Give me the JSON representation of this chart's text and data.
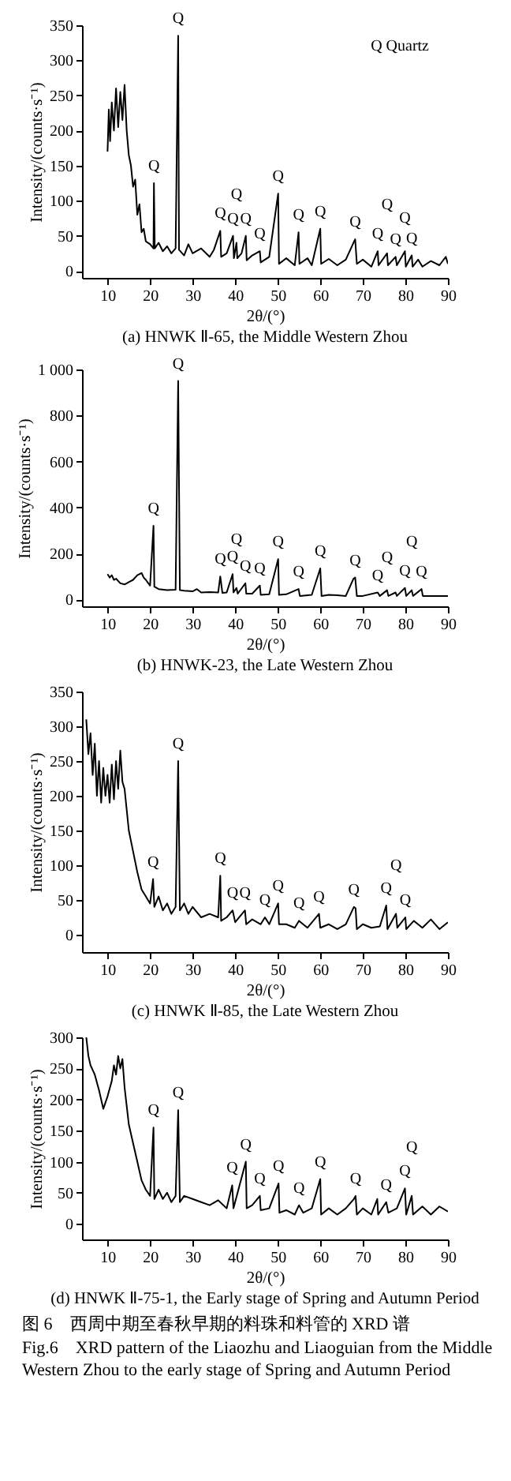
{
  "chart_data": [
    {
      "type": "line",
      "title": "(a) HNWK Ⅱ-65, the Middle Western Zhou",
      "xlabel": "2θ/(°)",
      "ylabel": "Intensity/(counts·s⁻¹)",
      "x": [
        10,
        10.3,
        10.6,
        11,
        11.5,
        12,
        12.5,
        13,
        13.5,
        14,
        14.5,
        15,
        15.5,
        16,
        16.5,
        17,
        17.5,
        18,
        18.5,
        19,
        20,
        20.8,
        20.9,
        21.1,
        22,
        23,
        24,
        25,
        26,
        26.6,
        26.8,
        28,
        29,
        30,
        32,
        34,
        35,
        36.5,
        36.7,
        38,
        39.5,
        39.7,
        40.3,
        40.5,
        41.5,
        42.5,
        42.7,
        44,
        45.8,
        46,
        48,
        50.1,
        50.3,
        52,
        54,
        54.9,
        55.1,
        57,
        58,
        60,
        60.2,
        62,
        64,
        66,
        67.8,
        68.2,
        68.6,
        70,
        72,
        73.5,
        73.7,
        75.7,
        75.9,
        77.7,
        78,
        79.9,
        80.1,
        81.5,
        81.7,
        83,
        84,
        86,
        88,
        89.5,
        90
      ],
      "series": [
        {
          "color": "#000000",
          "values": [
            170,
            230,
            185,
            240,
            200,
            260,
            205,
            255,
            215,
            265,
            200,
            165,
            150,
            120,
            130,
            80,
            95,
            55,
            60,
            42,
            38,
            32,
            125,
            32,
            40,
            28,
            35,
            25,
            32,
            335,
            30,
            22,
            38,
            25,
            32,
            20,
            30,
            57,
            20,
            25,
            50,
            18,
            40,
            18,
            25,
            50,
            15,
            22,
            28,
            12,
            20,
            110,
            10,
            18,
            8,
            55,
            10,
            18,
            8,
            60,
            10,
            17,
            8,
            16,
            40,
            45,
            10,
            16,
            6,
            28,
            8,
            25,
            8,
            20,
            8,
            28,
            6,
            22,
            6,
            16,
            6,
            14,
            8,
            20,
            10
          ]
        }
      ],
      "xlim": [
        4,
        90
      ],
      "ylim": [
        -10,
        350
      ],
      "xticks": [
        10,
        20,
        30,
        40,
        50,
        60,
        70,
        80,
        90
      ],
      "yticks": [
        0,
        50,
        100,
        150,
        200,
        250,
        300,
        350
      ],
      "annotations": [
        "Q Quartz",
        {
          "text": "Q",
          "x": 20.9,
          "y": 125
        },
        {
          "text": "Q",
          "x": 26.6,
          "y": 335
        },
        {
          "text": "Q",
          "x": 36.5,
          "y": 57
        },
        {
          "text": "Q",
          "x": 39.5,
          "y": 50
        },
        {
          "text": "Q",
          "x": 40.3,
          "y": 40
        },
        {
          "text": "Q",
          "x": 42.5,
          "y": 50
        },
        {
          "text": "Q",
          "x": 45.8,
          "y": 28
        },
        {
          "text": "Q",
          "x": 50.1,
          "y": 110
        },
        {
          "text": "Q",
          "x": 54.9,
          "y": 55
        },
        {
          "text": "Q",
          "x": 60,
          "y": 60
        },
        {
          "text": "Q",
          "x": 68.2,
          "y": 45
        },
        {
          "text": "Q",
          "x": 73.5,
          "y": 28
        },
        {
          "text": "Q",
          "x": 75.7,
          "y": 25
        },
        {
          "text": "Q",
          "x": 77.7,
          "y": 20
        },
        {
          "text": "Q",
          "x": 79.9,
          "y": 28
        },
        {
          "text": "Q",
          "x": 81.5,
          "y": 22
        }
      ]
    },
    {
      "type": "line",
      "title": "(b) HNWK-23, the Late Western Zhou",
      "xlabel": "2θ/(°)",
      "ylabel": "Intensity/(counts·s⁻¹)",
      "x": [
        10,
        10.5,
        11,
        11.5,
        12,
        13,
        14,
        15,
        16,
        17,
        18,
        18.5,
        19,
        20,
        20.8,
        21,
        22,
        24,
        26,
        26.6,
        27,
        28,
        30,
        31,
        32,
        34,
        36,
        36.5,
        37,
        38,
        39.4,
        39.6,
        40.3,
        40.6,
        42.4,
        42.6,
        44,
        45.8,
        46,
        48,
        50.1,
        50.3,
        52,
        54.9,
        55.2,
        58,
        60,
        60.3,
        62,
        64,
        66,
        67.8,
        68.2,
        68.6,
        70,
        73.5,
        74,
        75.7,
        76,
        77.7,
        78,
        79.9,
        80.2,
        81.5,
        81.8,
        83.8,
        84.1,
        86,
        88,
        90
      ],
      "series": [
        {
          "color": "#000000",
          "values": [
            110,
            95,
            105,
            85,
            90,
            70,
            65,
            75,
            85,
            105,
            115,
            95,
            85,
            60,
            320,
            55,
            45,
            40,
            42,
            950,
            40,
            38,
            35,
            45,
            30,
            32,
            30,
            100,
            28,
            30,
            110,
            30,
            50,
            25,
            70,
            25,
            25,
            60,
            20,
            22,
            175,
            20,
            22,
            45,
            15,
            20,
            135,
            15,
            20,
            18,
            15,
            90,
            95,
            15,
            15,
            30,
            15,
            40,
            15,
            30,
            15,
            50,
            15,
            40,
            15,
            45,
            15,
            15,
            15,
            15
          ]
        }
      ],
      "xlim": [
        4,
        90
      ],
      "ylim": [
        -30,
        1000
      ],
      "xticks": [
        10,
        20,
        30,
        40,
        50,
        60,
        70,
        80,
        90
      ],
      "yticks": [
        0,
        200,
        400,
        600,
        800,
        {
          "value": 1000,
          "label": "1 000"
        }
      ],
      "annotations": [
        {
          "text": "Q",
          "x": 20.8,
          "y": 320
        },
        {
          "text": "Q",
          "x": 26.6,
          "y": 950
        },
        {
          "text": "Q",
          "x": 36.5,
          "y": 100
        },
        {
          "text": "Q",
          "x": 39.4,
          "y": 110
        },
        {
          "text": "Q",
          "x": 40.3,
          "y": 50
        },
        {
          "text": "Q",
          "x": 42.4,
          "y": 70
        },
        {
          "text": "Q",
          "x": 45.8,
          "y": 60
        },
        {
          "text": "Q",
          "x": 50.1,
          "y": 175
        },
        {
          "text": "Q",
          "x": 54.9,
          "y": 45
        },
        {
          "text": "Q",
          "x": 60,
          "y": 135
        },
        {
          "text": "Q",
          "x": 68.2,
          "y": 95
        },
        {
          "text": "Q",
          "x": 73.5,
          "y": 30
        },
        {
          "text": "Q",
          "x": 75.7,
          "y": 40
        },
        {
          "text": "Q",
          "x": 79.9,
          "y": 50
        },
        {
          "text": "Q",
          "x": 81.5,
          "y": 40
        },
        {
          "text": "Q",
          "x": 83.8,
          "y": 45
        }
      ]
    },
    {
      "type": "line",
      "title": "(c) HNWK Ⅱ-85, the Late Western Zhou",
      "xlabel": "2θ/(°)",
      "ylabel": "Intensity/(counts·s⁻¹)",
      "x": [
        5,
        5.5,
        6,
        6.5,
        7,
        7.5,
        8,
        8.5,
        9,
        9.5,
        10,
        10.5,
        11,
        11.5,
        12,
        12.5,
        13,
        13.5,
        14,
        15,
        16,
        17,
        18,
        19,
        20,
        20.7,
        21,
        22,
        23,
        24,
        25,
        26,
        26.6,
        27,
        28,
        29,
        30,
        32,
        34,
        36,
        36.5,
        36.7,
        38,
        39.4,
        40,
        42.3,
        42.6,
        44,
        46,
        47,
        48,
        50.1,
        50.3,
        52,
        54,
        55,
        57,
        59.7,
        60,
        62,
        64,
        66,
        67.9,
        68.3,
        68.6,
        70,
        72,
        74,
        75.5,
        75.8,
        77.8,
        78.1,
        80,
        80.2,
        82,
        84,
        86,
        88,
        90
      ],
      "series": [
        {
          "color": "#000000",
          "values": [
            310,
            260,
            290,
            230,
            275,
            200,
            250,
            190,
            240,
            200,
            230,
            190,
            245,
            195,
            250,
            210,
            265,
            220,
            210,
            150,
            120,
            90,
            65,
            55,
            45,
            80,
            40,
            55,
            35,
            45,
            30,
            40,
            250,
            35,
            45,
            30,
            40,
            25,
            30,
            25,
            85,
            20,
            25,
            35,
            18,
            35,
            15,
            22,
            15,
            25,
            15,
            45,
            15,
            15,
            10,
            20,
            10,
            30,
            10,
            15,
            8,
            15,
            40,
            38,
            8,
            15,
            10,
            12,
            42,
            8,
            30,
            10,
            25,
            8,
            20,
            10,
            22,
            8,
            18
          ]
        }
      ],
      "xlim": [
        4,
        90
      ],
      "ylim": [
        -25,
        350
      ],
      "xticks": [
        10,
        20,
        30,
        40,
        50,
        60,
        70,
        80,
        90
      ],
      "yticks": [
        0,
        50,
        100,
        150,
        200,
        250,
        300,
        350
      ],
      "annotations": [
        {
          "text": "Q",
          "x": 20.7,
          "y": 80
        },
        {
          "text": "Q",
          "x": 26.6,
          "y": 250
        },
        {
          "text": "Q",
          "x": 36.5,
          "y": 85
        },
        {
          "text": "Q",
          "x": 39.4,
          "y": 35
        },
        {
          "text": "Q",
          "x": 42.3,
          "y": 35
        },
        {
          "text": "Q",
          "x": 47,
          "y": 25
        },
        {
          "text": "Q",
          "x": 50.1,
          "y": 45
        },
        {
          "text": "Q",
          "x": 55,
          "y": 20
        },
        {
          "text": "Q",
          "x": 59.7,
          "y": 30
        },
        {
          "text": "Q",
          "x": 67.9,
          "y": 40
        },
        {
          "text": "Q",
          "x": 75.5,
          "y": 42
        },
        {
          "text": "Q",
          "x": 77.8,
          "y": 30
        },
        {
          "text": "Q",
          "x": 80,
          "y": 25
        }
      ]
    },
    {
      "type": "line",
      "title": "(d) HNWK Ⅱ-75-1, the Early stage of Spring and Autumn Period",
      "xlabel": "2θ/(°)",
      "ylabel": "Intensity/(counts·s⁻¹)",
      "x": [
        5,
        5.5,
        6,
        7,
        8,
        9,
        10,
        11,
        11.5,
        12,
        12.5,
        13,
        13.5,
        14,
        15,
        16,
        17,
        18,
        19,
        20,
        20.8,
        21,
        22,
        23,
        24,
        25,
        26,
        26.6,
        27,
        28,
        30,
        32,
        34,
        36,
        38,
        39.3,
        39.6,
        42.5,
        42.7,
        44,
        45.8,
        46,
        48,
        50.2,
        50.4,
        52,
        54,
        55,
        56,
        58,
        60,
        60.2,
        62,
        64,
        66,
        67.9,
        68.3,
        68.6,
        70,
        72,
        73.4,
        73.6,
        75.5,
        76,
        78,
        79.9,
        80.2,
        81.5,
        81.8,
        84,
        86,
        88,
        90
      ],
      "series": [
        {
          "color": "#000000",
          "values": [
            300,
            270,
            255,
            240,
            215,
            185,
            205,
            230,
            255,
            240,
            270,
            250,
            265,
            220,
            160,
            130,
            100,
            70,
            55,
            45,
            155,
            40,
            55,
            40,
            50,
            35,
            45,
            183,
            35,
            45,
            40,
            35,
            30,
            38,
            25,
            62,
            25,
            100,
            25,
            30,
            45,
            22,
            25,
            65,
            18,
            22,
            15,
            30,
            18,
            25,
            72,
            15,
            25,
            15,
            25,
            40,
            45,
            15,
            25,
            15,
            40,
            15,
            35,
            18,
            25,
            57,
            15,
            45,
            15,
            28,
            15,
            28,
            20
          ]
        }
      ],
      "xlim": [
        4,
        90
      ],
      "ylim": [
        -25,
        300
      ],
      "xticks": [
        10,
        20,
        30,
        40,
        50,
        60,
        70,
        80,
        90
      ],
      "yticks": [
        0,
        50,
        100,
        150,
        200,
        250,
        300
      ],
      "annotations": [
        "图 6　西周中期至春秋早期的料珠和料管的 XRD 谱",
        "Fig.6　XRD pattern of the Liaozhu and Liaoguian from the Middle Western Zhou to the early stage of Spring and Autumn Period",
        {
          "text": "Q",
          "x": 20.8,
          "y": 155
        },
        {
          "text": "Q",
          "x": 26.6,
          "y": 183
        },
        {
          "text": "Q",
          "x": 39.3,
          "y": 62
        },
        {
          "text": "Q",
          "x": 42.5,
          "y": 100
        },
        {
          "text": "Q",
          "x": 45.8,
          "y": 45
        },
        {
          "text": "Q",
          "x": 50.2,
          "y": 65
        },
        {
          "text": "Q",
          "x": 55,
          "y": 30
        },
        {
          "text": "Q",
          "x": 60,
          "y": 72
        },
        {
          "text": "Q",
          "x": 68.3,
          "y": 45
        },
        {
          "text": "Q",
          "x": 75.5,
          "y": 35
        },
        {
          "text": "Q",
          "x": 79.9,
          "y": 57
        },
        {
          "text": "Q",
          "x": 81.5,
          "y": 45
        }
      ]
    }
  ]
}
